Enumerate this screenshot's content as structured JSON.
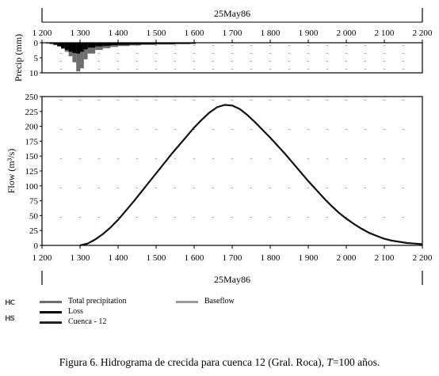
{
  "chart_data": [
    {
      "type": "bar",
      "name": "precipitation",
      "ylabel": "Precip (mm)",
      "ylim": [
        10,
        0
      ],
      "y_inverted": true,
      "y_ticks": [
        "0",
        "5",
        "10"
      ],
      "x_ticks": [
        "1 200",
        "1 300",
        "1 400",
        "1 500",
        "1 600",
        "1 700",
        "1 800",
        "1 900",
        "2 000",
        "2 100",
        "2 200"
      ],
      "x_range": [
        1200,
        2200
      ],
      "date_label": "25May86",
      "series": [
        {
          "name": "Total precipitation",
          "color": "#6e6e6e",
          "x": [
            1200,
            1210,
            1220,
            1230,
            1240,
            1250,
            1260,
            1270,
            1280,
            1290,
            1300,
            1310,
            1320,
            1340,
            1360,
            1380,
            1400,
            1430,
            1460,
            1500,
            1550,
            1590,
            1600
          ],
          "values": [
            0.1,
            0.2,
            0.4,
            0.7,
            1.2,
            2.0,
            3.0,
            4.5,
            6.5,
            9.5,
            8.5,
            5.5,
            3.6,
            2.4,
            1.8,
            1.4,
            1.1,
            0.9,
            0.7,
            0.6,
            0.5,
            0.4,
            0.4
          ]
        },
        {
          "name": "Loss",
          "color": "#000000",
          "x": [
            1200,
            1210,
            1220,
            1230,
            1240,
            1250,
            1260,
            1270,
            1280,
            1290,
            1300,
            1310,
            1320,
            1340,
            1360,
            1380,
            1400,
            1430,
            1460,
            1500,
            1550,
            1590,
            1600
          ],
          "values": [
            0.1,
            0.2,
            0.4,
            0.7,
            1.2,
            1.8,
            2.4,
            3.0,
            3.4,
            3.6,
            3.0,
            2.2,
            1.6,
            1.2,
            1.0,
            0.8,
            0.7,
            0.6,
            0.5,
            0.4,
            0.3,
            0.3,
            0.3
          ]
        }
      ]
    },
    {
      "type": "line",
      "name": "flow",
      "ylabel": "Flow (m³/s)",
      "ylim": [
        0,
        250
      ],
      "y_ticks": [
        "0",
        "25",
        "50",
        "75",
        "100",
        "125",
        "150",
        "175",
        "200",
        "225",
        "250"
      ],
      "x_ticks": [
        "1 200",
        "1 300",
        "1 400",
        "1 500",
        "1 600",
        "1 700",
        "1 800",
        "1 900",
        "2 000",
        "2 100",
        "2 200"
      ],
      "x_range": [
        1200,
        2200
      ],
      "date_label": "25May86",
      "series": [
        {
          "name": "Cuenca - 12",
          "color": "#111111",
          "x": [
            1300,
            1320,
            1340,
            1360,
            1380,
            1400,
            1420,
            1440,
            1460,
            1480,
            1500,
            1520,
            1540,
            1560,
            1580,
            1600,
            1620,
            1640,
            1660,
            1680,
            1700,
            1720,
            1740,
            1760,
            1780,
            1800,
            1820,
            1840,
            1860,
            1880,
            1900,
            1920,
            1940,
            1960,
            1980,
            2000,
            2020,
            2040,
            2060,
            2080,
            2100,
            2120,
            2140,
            2160,
            2180,
            2200
          ],
          "values": [
            0,
            3,
            10,
            19,
            30,
            43,
            58,
            73,
            89,
            105,
            121,
            137,
            153,
            168,
            183,
            198,
            211,
            223,
            232,
            236,
            235,
            229,
            219,
            207,
            194,
            181,
            167,
            153,
            138,
            123,
            108,
            94,
            80,
            67,
            55,
            45,
            36,
            28,
            21,
            16,
            11,
            8,
            6,
            4,
            3,
            2
          ]
        }
      ]
    }
  ],
  "legend": {
    "codes": [
      "HC",
      "HS"
    ],
    "entries": [
      "Total precipitation",
      "Loss",
      "Cuenca - 12",
      "Baseflow"
    ]
  },
  "caption": {
    "prefix": "Figura 6. Hidrograma de crecida para cuenca 12 (Gral. Roca), ",
    "italic": "T",
    "suffix": "=100 años."
  }
}
